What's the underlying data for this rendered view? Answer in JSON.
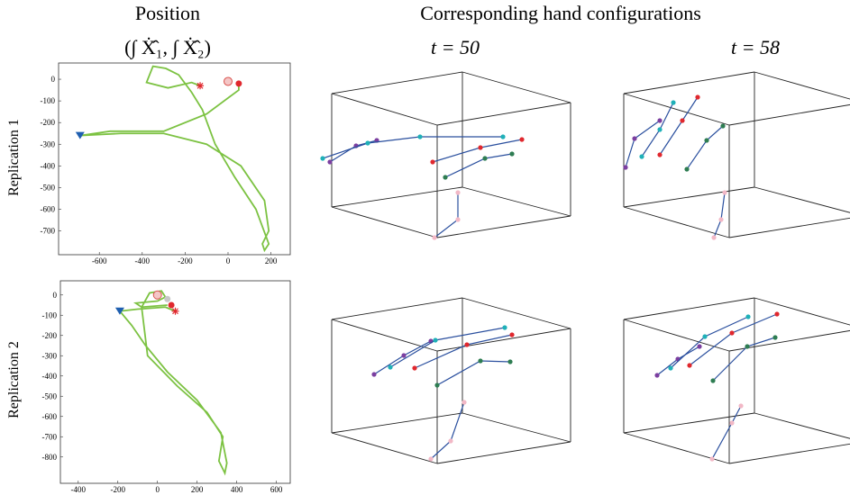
{
  "title": "Corresponding hand configurations",
  "position_title": "Position",
  "position_subtitle": "(∫ Ẋ̂₁, ∫ Ẋ̂₂)",
  "time_titles": [
    "t = 50",
    "t = 58"
  ],
  "row_labels": [
    "Replication 1",
    "Replication 2"
  ],
  "chart_data": [
    {
      "type": "line",
      "xlim": [
        -790,
        290
      ],
      "ylim": [
        -810,
        75
      ],
      "xticks": [
        -600,
        -400,
        -200,
        0,
        200
      ],
      "yticks": [
        0,
        -100,
        -200,
        -300,
        -400,
        -500,
        -600,
        -700
      ],
      "series": [
        {
          "color": "#7cc242",
          "x": [
            -130,
            -170,
            -280,
            -380,
            -350,
            -290,
            -230,
            -170,
            -120,
            -60,
            30,
            130,
            190,
            170,
            160,
            190,
            170,
            60,
            -100,
            -300,
            -500,
            -690,
            -550,
            -300,
            -100,
            50,
            50
          ],
          "y": [
            -30,
            -15,
            -40,
            -15,
            60,
            50,
            20,
            -60,
            -140,
            -300,
            -450,
            -600,
            -760,
            -790,
            -760,
            -700,
            -560,
            -400,
            -300,
            -250,
            -250,
            -260,
            -240,
            -240,
            -160,
            -50,
            -20
          ]
        }
      ],
      "markers": [
        {
          "symbol": "triangle",
          "color": "#1f5fb0",
          "x": -690,
          "y": -260
        },
        {
          "symbol": "asterisk",
          "color": "#e0282e",
          "x": -130,
          "y": -30
        },
        {
          "symbol": "ring",
          "color": "#d9534f",
          "x": 0,
          "y": -10
        },
        {
          "symbol": "dot",
          "color": "#e0282e",
          "x": 50,
          "y": -20
        }
      ]
    },
    {
      "type": "line",
      "xlim": [
        -490,
        670
      ],
      "ylim": [
        -930,
        70
      ],
      "xticks": [
        -400,
        -200,
        0,
        200,
        400,
        600
      ],
      "yticks": [
        0,
        -100,
        -200,
        -300,
        -400,
        -500,
        -600,
        -700,
        -800
      ],
      "series": [
        {
          "color": "#7cc242",
          "x": [
            90,
            40,
            -100,
            -190,
            -130,
            -60,
            50,
            200,
            320,
            350,
            340,
            310,
            330,
            250,
            100,
            -50,
            -80,
            -40,
            20,
            40,
            0,
            -110,
            -80,
            50
          ],
          "y": [
            -80,
            -60,
            -70,
            -80,
            -150,
            -250,
            -380,
            -520,
            -680,
            -830,
            -880,
            -820,
            -700,
            -580,
            -450,
            -300,
            -60,
            10,
            20,
            -10,
            -30,
            -40,
            -60,
            -50
          ]
        }
      ],
      "markers": [
        {
          "symbol": "triangle",
          "color": "#1f5fb0",
          "x": -190,
          "y": -80
        },
        {
          "symbol": "ring",
          "color": "#d9534f",
          "x": 0,
          "y": 0
        },
        {
          "symbol": "dot",
          "color": "#c8c8c8",
          "x": 50,
          "y": -20
        },
        {
          "symbol": "dot",
          "color": "#e0282e",
          "x": 70,
          "y": -50
        },
        {
          "symbol": "asterisk",
          "color": "#e0282e",
          "x": 90,
          "y": -80
        }
      ]
    }
  ]
}
